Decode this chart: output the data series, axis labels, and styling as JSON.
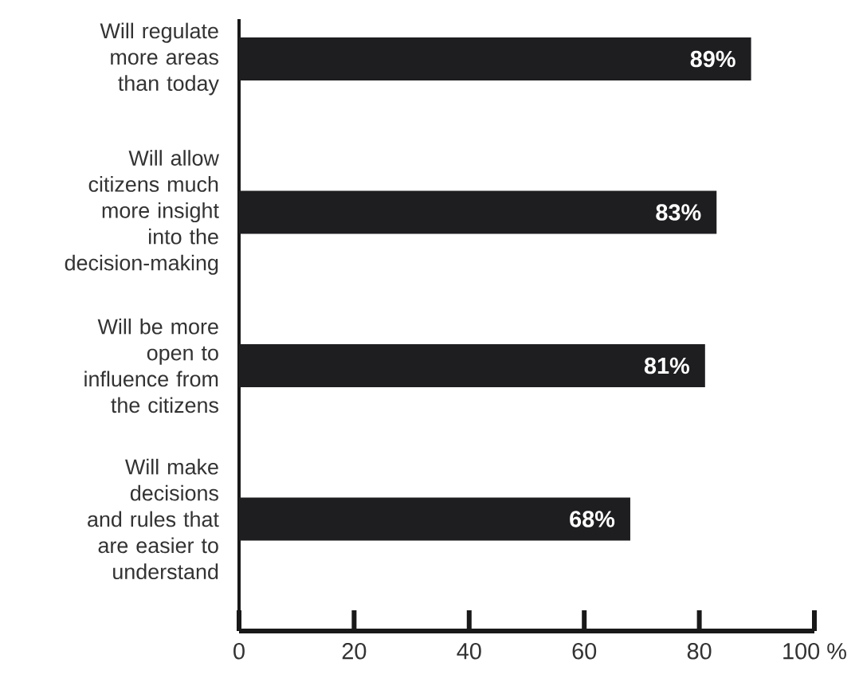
{
  "chart_data": {
    "type": "bar",
    "orientation": "horizontal",
    "categories": [
      "Will regulate more areas than today",
      "Will allow citizens much more insight into the decision-making",
      "Will be more open to influence from the citizens",
      "Will make decisions and rules that are easier to understand"
    ],
    "values": [
      89,
      83,
      81,
      68
    ],
    "color": "#1e1e21",
    "value_labels": [
      "89%",
      "83%",
      "81%",
      "68%"
    ],
    "xlim": [
      0,
      100
    ],
    "xticks": [
      0,
      20,
      40,
      60,
      80,
      {
        "value": 100,
        "label": "100 %"
      }
    ]
  }
}
